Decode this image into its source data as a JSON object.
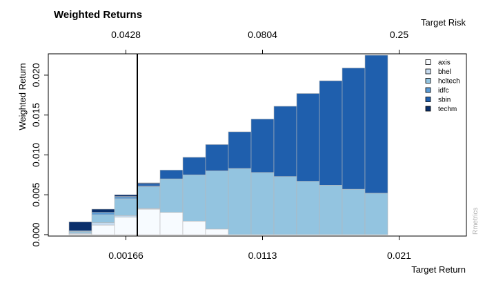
{
  "chart_data": {
    "type": "bar",
    "stacked": true,
    "title": "Weighted Returns",
    "xlabel": "Target Return",
    "ylabel": "Weighted Return",
    "top_axis_label": "Target Risk",
    "watermark": "Rmetrics",
    "ylim": [
      0,
      0.0225
    ],
    "y_ticks": [
      0.0,
      0.005,
      0.01,
      0.015,
      0.02
    ],
    "y_tick_labels": [
      "0.000",
      "0.005",
      "0.010",
      "0.015",
      "0.020"
    ],
    "x_tick_labels": [
      {
        "at_bar": 2,
        "label": "0.00166"
      },
      {
        "at_bar": 8,
        "label": "0.0113"
      },
      {
        "at_bar": 14,
        "label": "0.021"
      }
    ],
    "top_tick_labels": [
      {
        "at_bar": 2,
        "label": "0.0428"
      },
      {
        "at_bar": 8,
        "label": "0.0804"
      },
      {
        "at_bar": 14,
        "label": "0.25"
      }
    ],
    "min_variance_line_after_bar": 3,
    "legend_position": "top-right",
    "bar_count": 15,
    "series": [
      {
        "name": "axis",
        "color": "#f7fbff",
        "values": [
          0.0001,
          0.0012,
          0.0022,
          0.0032,
          0.0028,
          0.0017,
          0.0007,
          0,
          0,
          0,
          0,
          0,
          0,
          0,
          0
        ]
      },
      {
        "name": "bhel",
        "color": "#c6dbef",
        "values": [
          0.0001,
          0.0003,
          0.0002,
          0.0001,
          0,
          0,
          0,
          0,
          0,
          0,
          0,
          0,
          0,
          0,
          0
        ]
      },
      {
        "name": "hcltech",
        "color": "#93c4e0",
        "values": [
          0.0002,
          0.001,
          0.0021,
          0.0027,
          0.0042,
          0.0058,
          0.0073,
          0.0083,
          0.0078,
          0.0073,
          0.0067,
          0.0062,
          0.0057,
          0.0052,
          0
        ]
      },
      {
        "name": "idfc",
        "color": "#5b9bd5",
        "values": [
          0.0001,
          0.0003,
          0.0002,
          0.0001,
          0,
          0,
          0,
          0,
          0,
          0,
          0,
          0,
          0,
          0,
          0
        ]
      },
      {
        "name": "sbin",
        "color": "#1f5fad",
        "values": [
          0,
          0,
          0.0001,
          0.0003,
          0.0011,
          0.0022,
          0.0033,
          0.0046,
          0.0067,
          0.0088,
          0.011,
          0.0131,
          0.0152,
          0.0173,
          0
        ]
      },
      {
        "name": "techm",
        "color": "#0a2f6b",
        "values": [
          0.0011,
          0.0004,
          0.0002,
          0.0001,
          0,
          0,
          0,
          0,
          0,
          0,
          0,
          0,
          0,
          0,
          0
        ]
      }
    ]
  }
}
